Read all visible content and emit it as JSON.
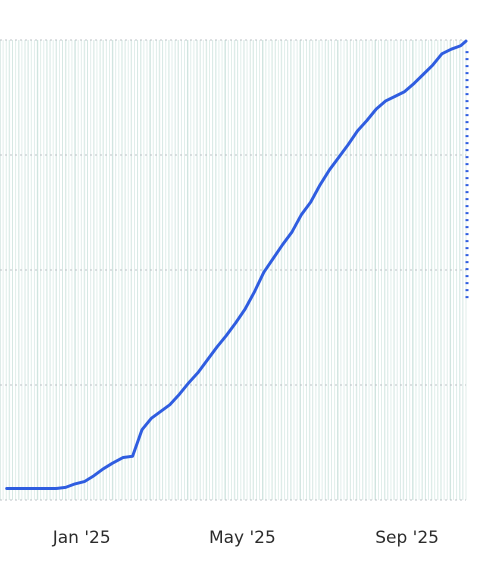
{
  "chart_data": {
    "type": "line",
    "title": "",
    "xlabel": "",
    "ylabel": "",
    "x_ticks": [
      "Jan '25",
      "May '25",
      "Sep '25"
    ],
    "x_tick_dates": [
      "2025-01-01",
      "2025-05-01",
      "2025-09-01"
    ],
    "y_ticks": [
      0,
      1,
      2,
      3,
      4
    ],
    "ylim": [
      0,
      4
    ],
    "grid": {
      "horizontal": true,
      "vertical_bands": true
    },
    "series": [
      {
        "color": "#2f5de0",
        "x": [
          "2024-11-06",
          "2024-11-15",
          "2024-11-22",
          "2024-11-29",
          "2024-12-06",
          "2024-12-13",
          "2024-12-20",
          "2024-12-27",
          "2025-01-03",
          "2025-01-10",
          "2025-01-17",
          "2025-01-24",
          "2025-02-01",
          "2025-02-08",
          "2025-02-15",
          "2025-02-22",
          "2025-03-01",
          "2025-03-08",
          "2025-03-15",
          "2025-03-22",
          "2025-03-29",
          "2025-04-05",
          "2025-04-12",
          "2025-04-19",
          "2025-04-26",
          "2025-05-03",
          "2025-05-10",
          "2025-05-17",
          "2025-05-24",
          "2025-05-31",
          "2025-06-07",
          "2025-06-14",
          "2025-06-21",
          "2025-06-28",
          "2025-07-05",
          "2025-07-12",
          "2025-07-19",
          "2025-07-26",
          "2025-08-02",
          "2025-08-09",
          "2025-08-16",
          "2025-08-23",
          "2025-08-30",
          "2025-09-06",
          "2025-09-13",
          "2025-09-20",
          "2025-09-27",
          "2025-10-04",
          "2025-10-11",
          "2025-10-15"
        ],
        "values": [
          0.1,
          0.1,
          0.1,
          0.1,
          0.1,
          0.1,
          0.11,
          0.14,
          0.16,
          0.21,
          0.27,
          0.32,
          0.37,
          0.38,
          0.61,
          0.71,
          0.77,
          0.83,
          0.92,
          1.02,
          1.11,
          1.22,
          1.33,
          1.43,
          1.54,
          1.66,
          1.81,
          1.98,
          2.1,
          2.22,
          2.33,
          2.48,
          2.59,
          2.74,
          2.87,
          2.98,
          3.09,
          3.21,
          3.3,
          3.4,
          3.47,
          3.51,
          3.55,
          3.62,
          3.7,
          3.78,
          3.88,
          3.92,
          3.95,
          3.99
        ]
      }
    ]
  }
}
